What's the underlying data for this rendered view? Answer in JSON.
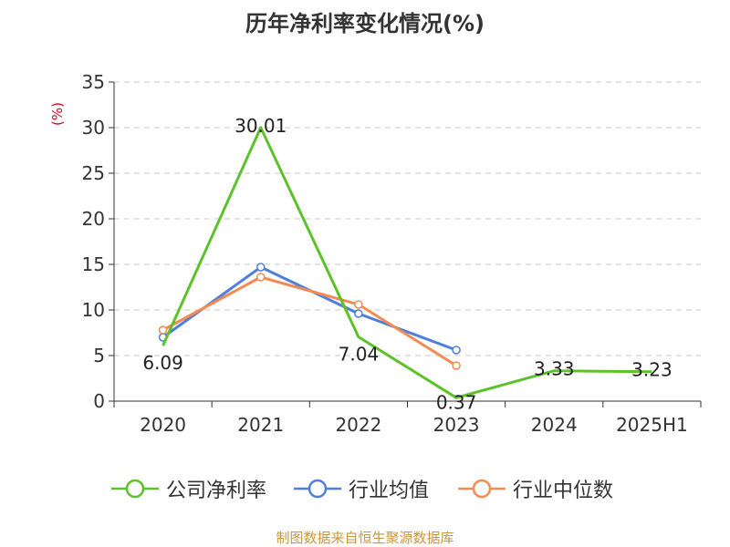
{
  "chart_data": {
    "type": "line",
    "title": "历年净利率变化情况(%)",
    "ylabel": "(%)",
    "xlabel": "",
    "categories": [
      "2020",
      "2021",
      "2022",
      "2023",
      "2024",
      "2025H1"
    ],
    "ylim": [
      0,
      35
    ],
    "yticks": [
      0,
      5,
      10,
      15,
      20,
      25,
      30,
      35
    ],
    "grid": true,
    "legend_position": "bottom",
    "series": [
      {
        "name": "公司净利率",
        "color": "#5cc22a",
        "values": [
          6.09,
          30.01,
          7.04,
          0.37,
          3.33,
          3.23
        ],
        "labels": [
          "6.09",
          "30.01",
          "7.04",
          "0.37",
          "3.33",
          "3.23"
        ]
      },
      {
        "name": "行业均值",
        "color": "#4e7fdc",
        "values": [
          7.0,
          14.7,
          9.6,
          5.6,
          null,
          null
        ]
      },
      {
        "name": "行业中位数",
        "color": "#f28b54",
        "values": [
          7.8,
          13.6,
          10.6,
          3.9,
          null,
          null
        ]
      }
    ]
  },
  "source": "制图数据来自恒生聚源数据库",
  "colors": {
    "axis": "#333333",
    "grid": "#c8c8c8",
    "ylabel": "#d9001b",
    "source": "#c8963e"
  }
}
